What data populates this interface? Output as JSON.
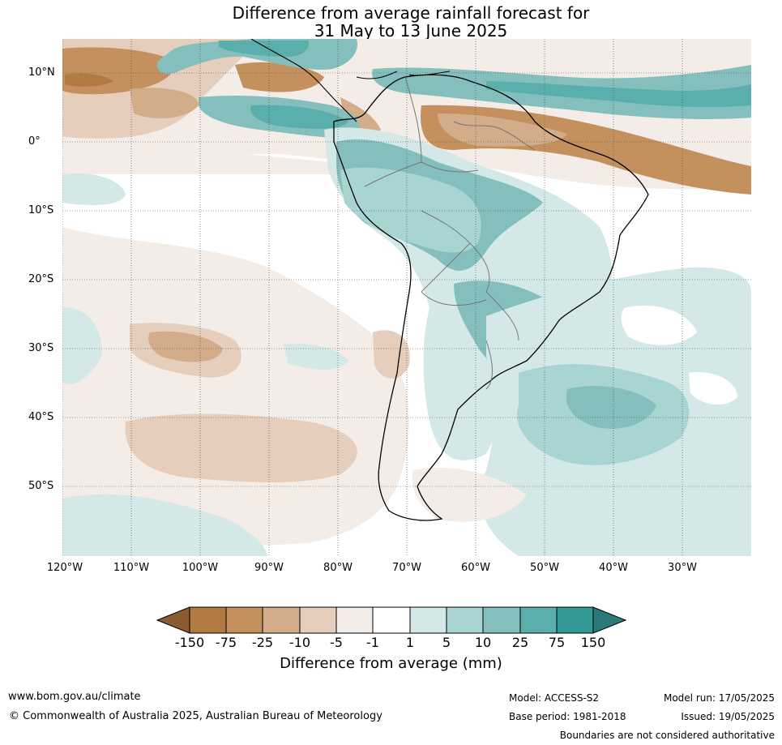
{
  "title": {
    "line1": "Difference from average rainfall forecast for",
    "line2": "31 May to 13 June 2025"
  },
  "map": {
    "lat_labels": [
      "10°N",
      "0°",
      "10°S",
      "20°S",
      "30°S",
      "40°S",
      "50°S"
    ],
    "lon_labels": [
      "120°W",
      "110°W",
      "100°W",
      "90°W",
      "80°W",
      "70°W",
      "60°W",
      "50°W",
      "40°W",
      "30°W"
    ]
  },
  "colorbar": {
    "ticks": [
      "-150",
      "-75",
      "-25",
      "-10",
      "-5",
      "-1",
      "1",
      "5",
      "10",
      "25",
      "75",
      "150"
    ],
    "colors": [
      "#8b5a30",
      "#b07a40",
      "#c4915e",
      "#d3ad89",
      "#e5cfbc",
      "#f4ece6",
      "#ffffff",
      "#d4e9e7",
      "#a8d4d1",
      "#84bfbd",
      "#5aaeab",
      "#329994",
      "#2a7b78"
    ],
    "label": "Difference from average (mm)"
  },
  "footer": {
    "url": "www.bom.gov.au/climate",
    "copyright": "© Commonwealth of Australia 2025, Australian Bureau of Meteorology",
    "model": "Model: ACCESS-S2",
    "base_period": "Base period: 1981-2018",
    "model_run": "Model run: 17/05/2025",
    "issued": "Issued: 19/05/2025",
    "disclaimer": "Boundaries are not considered authoritative"
  }
}
